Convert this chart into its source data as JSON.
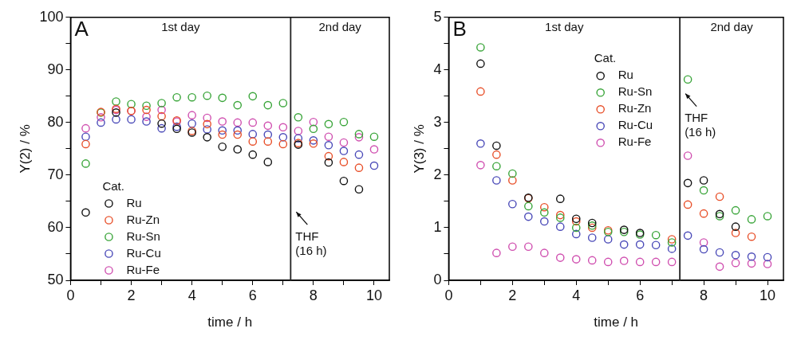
{
  "chart_data": [
    {
      "type": "scatter",
      "title": "A",
      "xlabel": "time / h",
      "ylabel": "Y(2) / %",
      "legend_title": "Cat.",
      "legend": "bottom left",
      "marker": "circle",
      "grid": false,
      "x": [
        0.5,
        1,
        1.5,
        2,
        2.5,
        3,
        3.5,
        4,
        4.5,
        5,
        5.5,
        6,
        6.5,
        7,
        7.5,
        8,
        8.5,
        9,
        9.5,
        10
      ],
      "xlim": [
        0,
        10.5
      ],
      "xticks": [
        0,
        {
          "value": 1,
          "label": null
        },
        2,
        {
          "value": 3,
          "label": null
        },
        4,
        {
          "value": 5,
          "label": null
        },
        6,
        {
          "value": 7,
          "label": null
        },
        8,
        {
          "value": 9,
          "label": null
        },
        10
      ],
      "ylim": [
        50,
        100
      ],
      "yticks": [
        50,
        {
          "value": 55,
          "label": null
        },
        60,
        {
          "value": 65,
          "label": null
        },
        70,
        {
          "value": 75,
          "label": null
        },
        80,
        {
          "value": 85,
          "label": null
        },
        90,
        {
          "value": 95,
          "label": null
        },
        100
      ],
      "series": [
        {
          "name": "Ru",
          "color": "#111111",
          "values": [
            62.9,
            null,
            81.9,
            null,
            null,
            79.8,
            78.8,
            78.1,
            77.2,
            75.4,
            74.9,
            73.9,
            72.5,
            null,
            75.8,
            null,
            72.4,
            68.9,
            67.3,
            null
          ]
        },
        {
          "name": "Ru-Zn",
          "color": "#e8502a",
          "values": [
            75.9,
            82.0,
            82.6,
            82.2,
            82.4,
            81.2,
            80.4,
            78.4,
            79.7,
            77.7,
            77.7,
            76.4,
            76.4,
            75.9,
            76.1,
            76.0,
            73.6,
            72.5,
            71.4,
            null
          ]
        },
        {
          "name": "Ru-Sn",
          "color": "#3aa53a",
          "values": [
            72.2,
            81.9,
            84.0,
            83.5,
            83.2,
            83.7,
            84.8,
            84.8,
            85.1,
            84.7,
            83.3,
            85.0,
            83.3,
            83.7,
            81.0,
            78.8,
            79.7,
            80.1,
            77.8,
            77.3
          ]
        },
        {
          "name": "Ru-Cu",
          "color": "#4a4ab8",
          "values": [
            77.3,
            80.0,
            80.6,
            80.6,
            80.2,
            78.9,
            79.2,
            79.8,
            78.7,
            78.5,
            78.5,
            77.8,
            77.7,
            77.2,
            77.0,
            76.6,
            75.7,
            74.6,
            73.9,
            71.8
          ]
        },
        {
          "name": "Ru-Fe",
          "color": "#d050b0",
          "values": [
            78.9,
            81.0,
            82.4,
            82.2,
            81.1,
            82.4,
            80.2,
            81.4,
            80.9,
            80.2,
            80.0,
            80.0,
            79.4,
            79.1,
            78.4,
            80.1,
            77.3,
            76.2,
            77.2,
            74.9
          ]
        }
      ],
      "ref_lines": [
        {
          "axis": "x",
          "value": 7.25,
          "color": "#222222"
        }
      ],
      "annotations": [
        "1st day",
        "2nd day",
        "THF (16 h)"
      ]
    },
    {
      "type": "scatter",
      "title": "B",
      "xlabel": "time / h",
      "ylabel": "Y(3) / %",
      "legend_title": "Cat.",
      "legend": "top",
      "marker": "circle",
      "grid": false,
      "x": [
        1,
        1.5,
        2,
        2.5,
        3,
        3.5,
        4,
        4.5,
        5,
        5.5,
        6,
        6.5,
        7,
        7.5,
        8,
        8.5,
        9,
        9.5,
        10
      ],
      "xlim": [
        0,
        10.5
      ],
      "xticks": [
        0,
        {
          "value": 1,
          "label": null
        },
        2,
        {
          "value": 3,
          "label": null
        },
        4,
        {
          "value": 5,
          "label": null
        },
        6,
        {
          "value": 7,
          "label": null
        },
        8,
        {
          "value": 9,
          "label": null
        },
        10
      ],
      "ylim": [
        0,
        5
      ],
      "yticks": [
        0,
        {
          "value": 0.5,
          "label": null
        },
        1,
        {
          "value": 1.5,
          "label": null
        },
        2,
        {
          "value": 2.5,
          "label": null
        },
        3,
        {
          "value": 3.5,
          "label": null
        },
        4,
        {
          "value": 4.5,
          "label": null
        },
        5
      ],
      "series": [
        {
          "name": "Ru",
          "color": "#111111",
          "values": [
            4.12,
            2.56,
            null,
            1.57,
            null,
            1.55,
            1.17,
            1.09,
            null,
            0.96,
            0.9,
            null,
            null,
            1.85,
            1.9,
            1.26,
            1.02,
            null,
            null
          ]
        },
        {
          "name": "Ru-Sn",
          "color": "#3aa53a",
          "values": [
            4.43,
            2.17,
            2.03,
            1.41,
            1.29,
            1.19,
            1.0,
            1.04,
            0.92,
            0.92,
            0.87,
            0.86,
            0.72,
            3.82,
            1.71,
            1.22,
            1.33,
            1.16,
            1.22
          ]
        },
        {
          "name": "Ru-Zn",
          "color": "#e8502a",
          "values": [
            3.59,
            2.39,
            1.9,
            1.56,
            1.39,
            1.24,
            1.12,
            1.0,
            0.95,
            null,
            null,
            null,
            0.78,
            1.44,
            1.27,
            1.59,
            0.9,
            0.83,
            null
          ]
        },
        {
          "name": "Ru-Cu",
          "color": "#4a4ab8",
          "values": [
            2.6,
            1.9,
            1.45,
            1.21,
            1.12,
            1.02,
            0.88,
            0.81,
            0.78,
            0.68,
            0.68,
            0.67,
            0.6,
            0.85,
            0.59,
            0.53,
            0.48,
            0.45,
            0.44
          ]
        },
        {
          "name": "Ru-Fe",
          "color": "#d050b0",
          "values": [
            2.19,
            0.52,
            0.64,
            0.64,
            0.52,
            0.43,
            0.4,
            0.38,
            0.35,
            0.37,
            0.35,
            0.35,
            0.35,
            2.37,
            0.72,
            0.26,
            0.33,
            0.32,
            0.31
          ]
        }
      ],
      "ref_lines": [
        {
          "axis": "x",
          "value": 7.25,
          "color": "#222222"
        }
      ],
      "annotations": [
        "1st day",
        "2nd day",
        "THF (16 h)"
      ]
    }
  ]
}
